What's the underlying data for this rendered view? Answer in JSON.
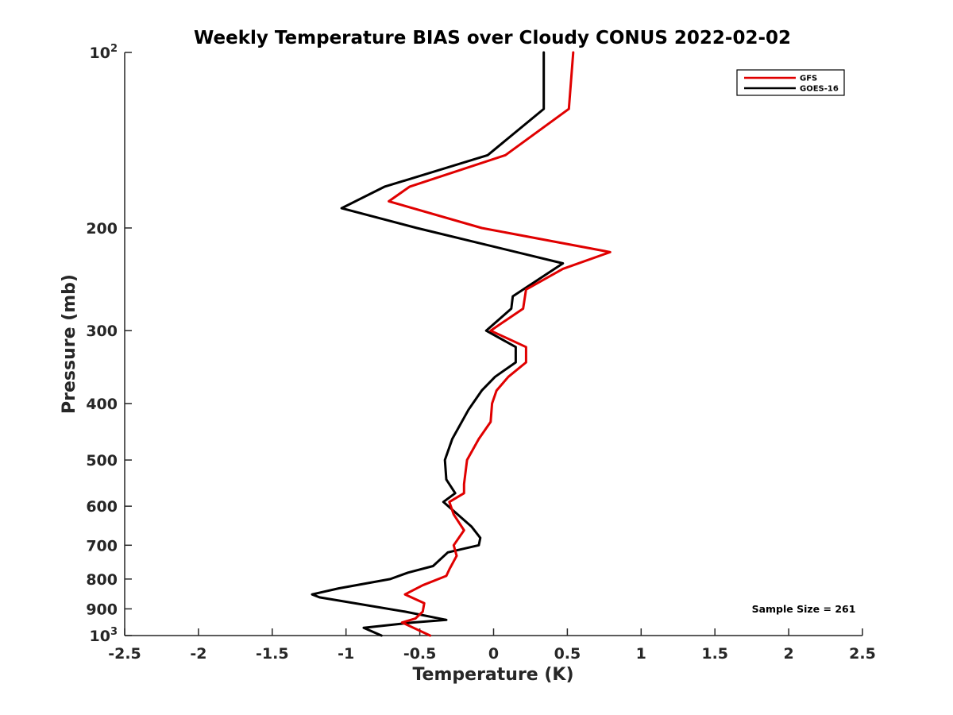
{
  "chart_data": {
    "type": "line",
    "title": "Weekly Temperature BIAS over Cloudy CONUS 2022-02-02",
    "xlabel": "Temperature (K)",
    "ylabel": "Pressure (mb)",
    "xlim": [
      -2.5,
      2.5
    ],
    "ylim": [
      100,
      1000
    ],
    "y_scale": "log",
    "y_reversed": true,
    "x_ticks": [
      "-2.5",
      "-2",
      "-1.5",
      "-1",
      "-0.5",
      "0",
      "0.5",
      "1",
      "1.5",
      "2",
      "2.5"
    ],
    "y_ticks": [
      {
        "value": 100,
        "base": "10",
        "exp": "2"
      },
      {
        "value": 200,
        "label": "200"
      },
      {
        "value": 300,
        "label": "300"
      },
      {
        "value": 400,
        "label": "400"
      },
      {
        "value": 500,
        "label": "500"
      },
      {
        "value": 600,
        "label": "600"
      },
      {
        "value": 700,
        "label": "700"
      },
      {
        "value": 800,
        "label": "800"
      },
      {
        "value": 900,
        "label": "900"
      },
      {
        "value": 1000,
        "base": "10",
        "exp": "3"
      }
    ],
    "grid": false,
    "legend_position": "top-right",
    "annotation": "Sample Size = 261",
    "series": [
      {
        "name": "GFS",
        "color": "#e00000",
        "points": [
          [
            0.54,
            100
          ],
          [
            0.51,
            125
          ],
          [
            0.08,
            150
          ],
          [
            -0.57,
            170
          ],
          [
            -0.71,
            180
          ],
          [
            -0.08,
            200
          ],
          [
            0.79,
            220
          ],
          [
            0.47,
            235
          ],
          [
            0.22,
            255
          ],
          [
            0.2,
            275
          ],
          [
            -0.02,
            300
          ],
          [
            0.22,
            320
          ],
          [
            0.22,
            340
          ],
          [
            0.1,
            360
          ],
          [
            0.02,
            380
          ],
          [
            -0.01,
            400
          ],
          [
            -0.02,
            430
          ],
          [
            -0.1,
            460
          ],
          [
            -0.18,
            500
          ],
          [
            -0.2,
            550
          ],
          [
            -0.2,
            570
          ],
          [
            -0.3,
            590
          ],
          [
            -0.27,
            620
          ],
          [
            -0.2,
            660
          ],
          [
            -0.27,
            700
          ],
          [
            -0.25,
            730
          ],
          [
            -0.3,
            770
          ],
          [
            -0.32,
            790
          ],
          [
            -0.48,
            820
          ],
          [
            -0.6,
            850
          ],
          [
            -0.47,
            880
          ],
          [
            -0.48,
            910
          ],
          [
            -0.53,
            935
          ],
          [
            -0.62,
            950
          ],
          [
            -0.43,
            1000
          ]
        ]
      },
      {
        "name": "GOES-16",
        "color": "#000000",
        "points": [
          [
            0.34,
            100
          ],
          [
            0.34,
            125
          ],
          [
            -0.04,
            150
          ],
          [
            -0.74,
            170
          ],
          [
            -1.03,
            185
          ],
          [
            -0.52,
            200
          ],
          [
            0.47,
            230
          ],
          [
            0.13,
            262
          ],
          [
            0.12,
            275
          ],
          [
            -0.05,
            300
          ],
          [
            0.15,
            320
          ],
          [
            0.15,
            340
          ],
          [
            0.01,
            360
          ],
          [
            -0.08,
            380
          ],
          [
            -0.17,
            410
          ],
          [
            -0.28,
            460
          ],
          [
            -0.33,
            500
          ],
          [
            -0.32,
            540
          ],
          [
            -0.26,
            570
          ],
          [
            -0.34,
            590
          ],
          [
            -0.15,
            650
          ],
          [
            -0.09,
            680
          ],
          [
            -0.1,
            700
          ],
          [
            -0.31,
            720
          ],
          [
            -0.41,
            760
          ],
          [
            -0.58,
            780
          ],
          [
            -0.7,
            800
          ],
          [
            -1.05,
            830
          ],
          [
            -1.23,
            850
          ],
          [
            -1.18,
            860
          ],
          [
            -0.6,
            910
          ],
          [
            -0.32,
            940
          ],
          [
            -0.55,
            950
          ],
          [
            -0.88,
            970
          ],
          [
            -0.76,
            1000
          ]
        ]
      }
    ]
  }
}
